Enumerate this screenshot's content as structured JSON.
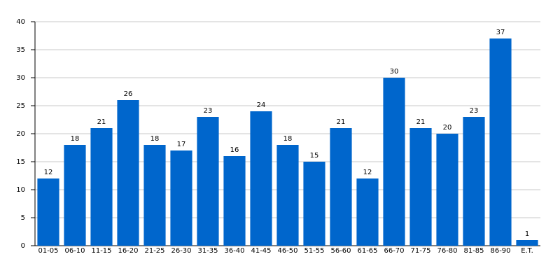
{
  "chart_data": {
    "type": "bar",
    "categories": [
      "01-05",
      "06-10",
      "11-15",
      "16-20",
      "21-25",
      "26-30",
      "31-35",
      "36-40",
      "41-45",
      "46-50",
      "51-55",
      "56-60",
      "61-65",
      "66-70",
      "71-75",
      "76-80",
      "81-85",
      "86-90",
      "E.T."
    ],
    "values": [
      12,
      18,
      21,
      26,
      18,
      17,
      23,
      16,
      24,
      18,
      15,
      21,
      12,
      30,
      21,
      20,
      23,
      37,
      1
    ],
    "color": "#0066cc",
    "ylim": [
      0,
      40
    ],
    "yticks": [
      0,
      5,
      10,
      15,
      20,
      25,
      30,
      35,
      40
    ],
    "grid": true
  }
}
